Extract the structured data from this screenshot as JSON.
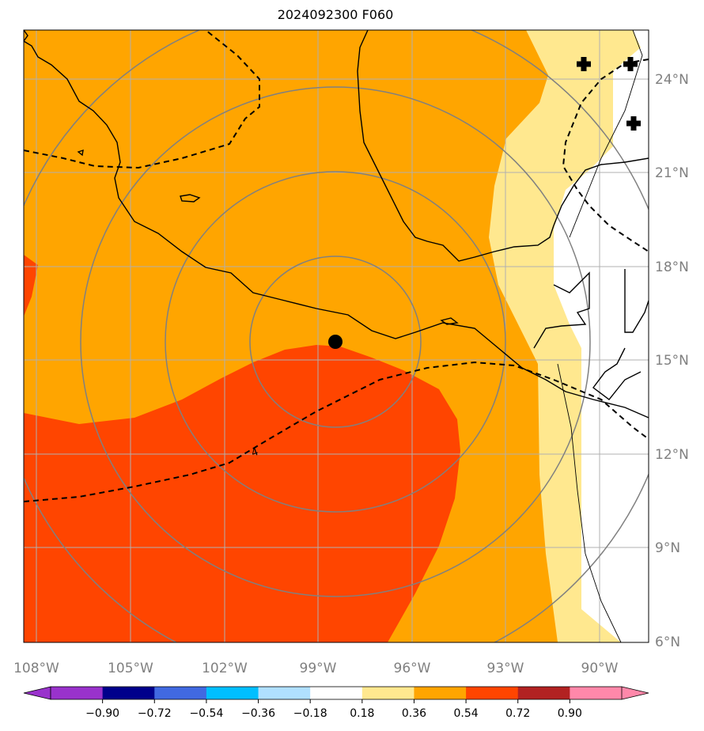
{
  "title": "2024092300 F060",
  "map": {
    "lat_labels": [
      "24°N",
      "21°N",
      "18°N",
      "15°N",
      "12°N",
      "9°N",
      "6°N"
    ],
    "lon_labels": [
      "108°W",
      "105°W",
      "102°W",
      "99°W",
      "96°W",
      "93°W",
      "90°W"
    ],
    "contour_label": "4",
    "center_marker": "storm-center",
    "plus_markers": 3
  },
  "colorbar": {
    "ticks": [
      "−0.90",
      "−0.72",
      "−0.54",
      "−0.36",
      "−0.18",
      "0.18",
      "0.36",
      "0.54",
      "0.72",
      "0.90"
    ],
    "colors": [
      "#9932cc",
      "#00008b",
      "#4169e1",
      "#00bfff",
      "#b0e0ff",
      "#ffffff",
      "#ffe88f",
      "#ffa500",
      "#ff4500",
      "#b22222",
      "#ff88aa"
    ],
    "extend_low": "#9932cc",
    "extend_high": "#ff88aa"
  },
  "fill_colors": {
    "light_yellow": "#ffe88f",
    "orange": "#ffa500",
    "red_orange": "#ff4500"
  }
}
